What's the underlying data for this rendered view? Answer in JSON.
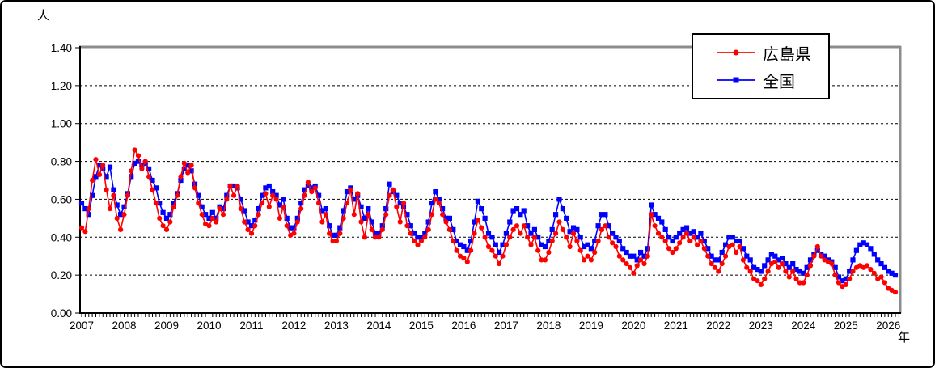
{
  "chart_data": {
    "type": "line",
    "title": "",
    "y_unit": "人",
    "x_unit": "年",
    "ylim": [
      0,
      1.4
    ],
    "y_ticks": [
      "0.00",
      "0.20",
      "0.40",
      "0.60",
      "0.80",
      "1.00",
      "1.20",
      "1.40"
    ],
    "grid": "horizontal dashed black lines at each 0.20",
    "legend_position": "inset top-right box",
    "x_years": [
      2007,
      2008,
      2009,
      2010,
      2011,
      2012,
      2013,
      2014,
      2015,
      2016,
      2017,
      2018,
      2019,
      2020,
      2021,
      2022,
      2023,
      2024,
      2025,
      2026
    ],
    "x_frequency": "monthly, Jan 2007 through Mar 2026",
    "series": [
      {
        "name": "広島県",
        "key": "hiroshima",
        "color": "#ff0000",
        "marker": "circle",
        "values": [
          0.45,
          0.43,
          0.55,
          0.7,
          0.81,
          0.73,
          0.78,
          0.65,
          0.55,
          0.62,
          0.5,
          0.44,
          0.52,
          0.62,
          0.75,
          0.86,
          0.83,
          0.76,
          0.8,
          0.72,
          0.65,
          0.58,
          0.5,
          0.46,
          0.44,
          0.48,
          0.56,
          0.62,
          0.72,
          0.79,
          0.74,
          0.78,
          0.66,
          0.58,
          0.52,
          0.47,
          0.46,
          0.5,
          0.48,
          0.55,
          0.52,
          0.6,
          0.67,
          0.62,
          0.67,
          0.55,
          0.48,
          0.44,
          0.42,
          0.46,
          0.52,
          0.58,
          0.63,
          0.56,
          0.62,
          0.6,
          0.5,
          0.56,
          0.46,
          0.41,
          0.42,
          0.48,
          0.55,
          0.62,
          0.69,
          0.64,
          0.66,
          0.58,
          0.48,
          0.52,
          0.42,
          0.38,
          0.38,
          0.42,
          0.5,
          0.58,
          0.65,
          0.52,
          0.63,
          0.48,
          0.4,
          0.52,
          0.44,
          0.4,
          0.4,
          0.44,
          0.52,
          0.62,
          0.65,
          0.56,
          0.48,
          0.58,
          0.46,
          0.42,
          0.38,
          0.36,
          0.38,
          0.4,
          0.44,
          0.52,
          0.6,
          0.58,
          0.52,
          0.48,
          0.44,
          0.38,
          0.33,
          0.3,
          0.29,
          0.27,
          0.33,
          0.42,
          0.49,
          0.45,
          0.4,
          0.35,
          0.33,
          0.3,
          0.26,
          0.3,
          0.36,
          0.4,
          0.44,
          0.46,
          0.42,
          0.46,
          0.4,
          0.36,
          0.4,
          0.33,
          0.28,
          0.28,
          0.32,
          0.38,
          0.42,
          0.48,
          0.44,
          0.4,
          0.35,
          0.42,
          0.38,
          0.33,
          0.28,
          0.3,
          0.28,
          0.32,
          0.38,
          0.44,
          0.46,
          0.4,
          0.37,
          0.35,
          0.3,
          0.28,
          0.26,
          0.24,
          0.21,
          0.25,
          0.28,
          0.26,
          0.3,
          0.52,
          0.46,
          0.42,
          0.4,
          0.38,
          0.34,
          0.32,
          0.34,
          0.37,
          0.4,
          0.42,
          0.38,
          0.4,
          0.36,
          0.38,
          0.34,
          0.3,
          0.26,
          0.24,
          0.22,
          0.26,
          0.3,
          0.35,
          0.36,
          0.32,
          0.35,
          0.28,
          0.24,
          0.22,
          0.18,
          0.17,
          0.15,
          0.18,
          0.22,
          0.26,
          0.27,
          0.24,
          0.26,
          0.22,
          0.19,
          0.22,
          0.18,
          0.16,
          0.16,
          0.2,
          0.25,
          0.3,
          0.35,
          0.3,
          0.28,
          0.27,
          0.26,
          0.2,
          0.16,
          0.14,
          0.15,
          0.18,
          0.22,
          0.24,
          0.25,
          0.24,
          0.25,
          0.23,
          0.21,
          0.18,
          0.19,
          0.16,
          0.13,
          0.12,
          0.11
        ]
      },
      {
        "name": "全国",
        "key": "zenkoku",
        "color": "#0000ff",
        "marker": "square",
        "values": [
          0.58,
          0.55,
          0.52,
          0.62,
          0.72,
          0.78,
          0.76,
          0.72,
          0.77,
          0.65,
          0.57,
          0.52,
          0.56,
          0.63,
          0.72,
          0.79,
          0.8,
          0.78,
          0.79,
          0.76,
          0.7,
          0.66,
          0.58,
          0.53,
          0.5,
          0.52,
          0.58,
          0.63,
          0.7,
          0.76,
          0.78,
          0.75,
          0.68,
          0.62,
          0.56,
          0.52,
          0.5,
          0.53,
          0.5,
          0.56,
          0.55,
          0.62,
          0.67,
          0.67,
          0.66,
          0.6,
          0.54,
          0.48,
          0.46,
          0.49,
          0.55,
          0.62,
          0.66,
          0.67,
          0.64,
          0.62,
          0.57,
          0.6,
          0.5,
          0.45,
          0.45,
          0.5,
          0.58,
          0.65,
          0.67,
          0.66,
          0.67,
          0.62,
          0.54,
          0.55,
          0.46,
          0.41,
          0.41,
          0.45,
          0.54,
          0.64,
          0.66,
          0.6,
          0.62,
          0.56,
          0.5,
          0.55,
          0.48,
          0.42,
          0.42,
          0.46,
          0.55,
          0.68,
          0.64,
          0.62,
          0.58,
          0.56,
          0.52,
          0.46,
          0.42,
          0.4,
          0.4,
          0.42,
          0.48,
          0.58,
          0.64,
          0.6,
          0.55,
          0.5,
          0.5,
          0.44,
          0.38,
          0.36,
          0.35,
          0.33,
          0.38,
          0.48,
          0.59,
          0.55,
          0.5,
          0.42,
          0.4,
          0.36,
          0.32,
          0.36,
          0.42,
          0.48,
          0.54,
          0.55,
          0.52,
          0.54,
          0.46,
          0.42,
          0.44,
          0.4,
          0.36,
          0.35,
          0.38,
          0.44,
          0.52,
          0.6,
          0.55,
          0.5,
          0.43,
          0.45,
          0.44,
          0.4,
          0.35,
          0.36,
          0.34,
          0.38,
          0.46,
          0.52,
          0.52,
          0.46,
          0.42,
          0.4,
          0.38,
          0.34,
          0.32,
          0.3,
          0.3,
          0.28,
          0.32,
          0.3,
          0.34,
          0.57,
          0.52,
          0.5,
          0.48,
          0.44,
          0.4,
          0.38,
          0.4,
          0.42,
          0.44,
          0.45,
          0.42,
          0.43,
          0.4,
          0.42,
          0.38,
          0.34,
          0.3,
          0.28,
          0.28,
          0.32,
          0.36,
          0.4,
          0.4,
          0.38,
          0.38,
          0.34,
          0.3,
          0.28,
          0.24,
          0.23,
          0.22,
          0.25,
          0.28,
          0.31,
          0.3,
          0.28,
          0.29,
          0.26,
          0.24,
          0.26,
          0.23,
          0.22,
          0.21,
          0.24,
          0.28,
          0.31,
          0.33,
          0.31,
          0.3,
          0.28,
          0.27,
          0.24,
          0.19,
          0.17,
          0.18,
          0.22,
          0.28,
          0.33,
          0.36,
          0.37,
          0.36,
          0.34,
          0.31,
          0.28,
          0.26,
          0.24,
          0.22,
          0.21,
          0.2
        ]
      }
    ]
  }
}
